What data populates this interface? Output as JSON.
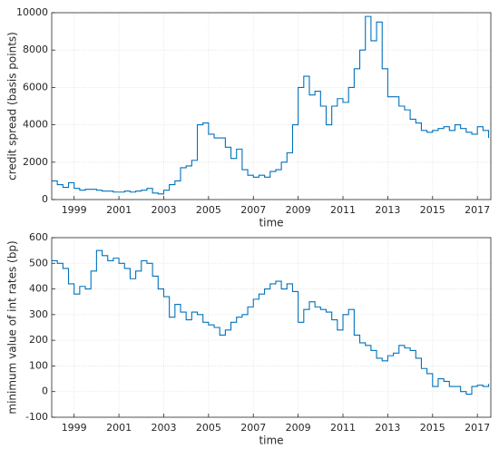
{
  "chart_data": [
    {
      "type": "line",
      "drawstyle": "steps",
      "grid": true,
      "xlabel": "time",
      "ylabel": "credit spread (basis points)",
      "xlim": [
        1998.0,
        2017.6
      ],
      "xticks": [
        1999,
        2001,
        2003,
        2005,
        2007,
        2009,
        2011,
        2013,
        2015,
        2017
      ],
      "ylim": [
        0,
        10000
      ],
      "yticks": [
        0,
        2000,
        4000,
        6000,
        8000,
        10000
      ],
      "x": [
        1998,
        1998.25,
        1998.5,
        1998.75,
        1999,
        1999.25,
        1999.5,
        1999.75,
        2000,
        2000.25,
        2000.5,
        2000.75,
        2001,
        2001.25,
        2001.5,
        2001.75,
        2002,
        2002.25,
        2002.5,
        2002.75,
        2003,
        2003.25,
        2003.5,
        2003.75,
        2004,
        2004.25,
        2004.5,
        2004.75,
        2005,
        2005.25,
        2005.5,
        2005.75,
        2006,
        2006.25,
        2006.5,
        2006.75,
        2007,
        2007.25,
        2007.5,
        2007.75,
        2008,
        2008.25,
        2008.5,
        2008.75,
        2009,
        2009.25,
        2009.5,
        2009.75,
        2010,
        2010.25,
        2010.5,
        2010.75,
        2011,
        2011.25,
        2011.5,
        2011.75,
        2012,
        2012.25,
        2012.5,
        2012.75,
        2013,
        2013.25,
        2013.5,
        2013.75,
        2014,
        2014.25,
        2014.5,
        2014.75,
        2015,
        2015.25,
        2015.5,
        2015.75,
        2016,
        2016.25,
        2016.5,
        2016.75,
        2017,
        2017.25,
        2017.5
      ],
      "series": [
        {
          "color": "#0072bd",
          "values": [
            1000,
            800,
            650,
            900,
            600,
            500,
            550,
            550,
            500,
            450,
            450,
            400,
            400,
            450,
            400,
            450,
            500,
            600,
            350,
            300,
            500,
            800,
            1000,
            1700,
            1800,
            2100,
            4000,
            4100,
            3500,
            3300,
            3300,
            2800,
            2200,
            2700,
            1600,
            1300,
            1200,
            1300,
            1200,
            1500,
            1600,
            2000,
            2500,
            4000,
            6000,
            6600,
            5600,
            5800,
            5000,
            4000,
            5000,
            5400,
            5200,
            6000,
            7000,
            8000,
            9800,
            8500,
            9500,
            7000,
            5500,
            5500,
            5000,
            4800,
            4300,
            4100,
            3700,
            3600,
            3700,
            3800,
            3900,
            3700,
            4000,
            3800,
            3600,
            3500,
            3900,
            3700,
            3300
          ]
        }
      ]
    },
    {
      "type": "line",
      "drawstyle": "steps",
      "grid": true,
      "xlabel": "time",
      "ylabel": "minimum value of int rates (bp)",
      "xlim": [
        1998.0,
        2017.6
      ],
      "xticks": [
        1999,
        2001,
        2003,
        2005,
        2007,
        2009,
        2011,
        2013,
        2015,
        2017
      ],
      "ylim": [
        -100,
        600
      ],
      "yticks": [
        -100,
        0,
        100,
        200,
        300,
        400,
        500,
        600
      ],
      "x": [
        1998,
        1998.25,
        1998.5,
        1998.75,
        1999,
        1999.25,
        1999.5,
        1999.75,
        2000,
        2000.25,
        2000.5,
        2000.75,
        2001,
        2001.25,
        2001.5,
        2001.75,
        2002,
        2002.25,
        2002.5,
        2002.75,
        2003,
        2003.25,
        2003.5,
        2003.75,
        2004,
        2004.25,
        2004.5,
        2004.75,
        2005,
        2005.25,
        2005.5,
        2005.75,
        2006,
        2006.25,
        2006.5,
        2006.75,
        2007,
        2007.25,
        2007.5,
        2007.75,
        2008,
        2008.25,
        2008.5,
        2008.75,
        2009,
        2009.25,
        2009.5,
        2009.75,
        2010,
        2010.25,
        2010.5,
        2010.75,
        2011,
        2011.25,
        2011.5,
        2011.75,
        2012,
        2012.25,
        2012.5,
        2012.75,
        2013,
        2013.25,
        2013.5,
        2013.75,
        2014,
        2014.25,
        2014.5,
        2014.75,
        2015,
        2015.25,
        2015.5,
        2015.75,
        2016,
        2016.25,
        2016.5,
        2016.75,
        2017,
        2017.25,
        2017.5
      ],
      "series": [
        {
          "color": "#0072bd",
          "values": [
            510,
            500,
            480,
            420,
            380,
            410,
            400,
            470,
            550,
            530,
            510,
            520,
            500,
            480,
            440,
            470,
            510,
            500,
            450,
            400,
            370,
            290,
            340,
            310,
            280,
            310,
            300,
            270,
            260,
            250,
            220,
            240,
            270,
            290,
            300,
            330,
            360,
            380,
            400,
            420,
            430,
            400,
            420,
            390,
            270,
            320,
            350,
            330,
            320,
            310,
            280,
            240,
            300,
            320,
            220,
            190,
            180,
            160,
            130,
            120,
            140,
            150,
            180,
            170,
            160,
            130,
            90,
            70,
            20,
            50,
            40,
            20,
            20,
            0,
            -10,
            20,
            25,
            20,
            30
          ]
        }
      ]
    }
  ]
}
